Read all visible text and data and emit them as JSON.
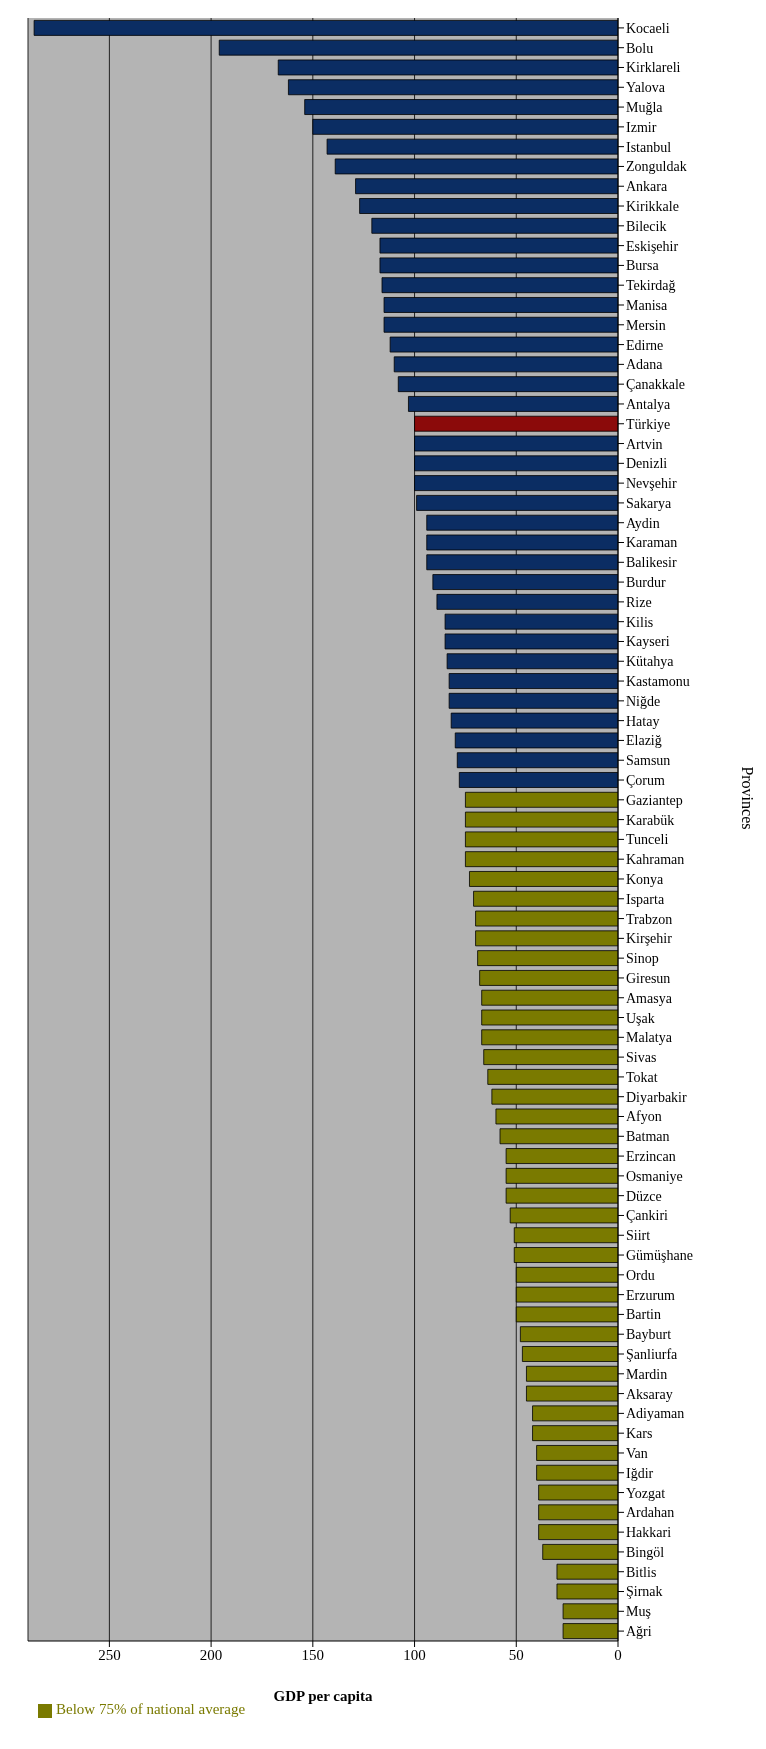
{
  "chart_data": {
    "type": "bar",
    "orientation": "horizontal",
    "stacked": true,
    "xlabel": "GDP per capita",
    "ylabel": "Provinces",
    "categories": [
      "Kocaeli",
      "Bolu",
      "Kirklareli",
      "Yalova",
      "Muğla",
      "Izmir",
      "Istanbul",
      "Zonguldak",
      "Ankara",
      "Kirikkale",
      "Bilecik",
      "Eskişehir",
      "Bursa",
      "Tekirdağ",
      "Manisa",
      "Mersin",
      "Edirne",
      "Adana",
      "Çanakkale",
      "Antalya",
      "Türkiye",
      "Artvin",
      "Denizli",
      "Nevşehir",
      "Sakarya",
      "Aydin",
      "Karaman",
      "Balikesir",
      "Burdur",
      "Rize",
      "Kilis",
      "Kayseri",
      "Kütahya",
      "Kastamonu",
      "Niğde",
      "Hatay",
      "Elaziğ",
      "Samsun",
      "Çorum",
      "Gaziantep",
      "Karabük",
      "Tunceli",
      "Kahraman",
      "Konya",
      "Isparta",
      "Trabzon",
      "Kirşehir",
      "Sinop",
      "Giresun",
      "Amasya",
      "Uşak",
      "Malatya",
      "Sivas",
      "Tokat",
      "Diyarbakir",
      "Afyon",
      "Batman",
      "Erzincan",
      "Osmaniye",
      "Düzce",
      "Çankiri",
      "Siirt",
      "Gümüşhane",
      "Ordu",
      "Erzurum",
      "Bartin",
      "Bayburt",
      "Şanliurfa",
      "Mardin",
      "Aksaray",
      "Adiyaman",
      "Kars",
      "Van",
      "Iğdir",
      "Yozgat",
      "Ardahan",
      "Hakkari",
      "Bingöl",
      "Bitlis",
      "Şirnak",
      "Muş",
      "Ağri"
    ],
    "series": [
      {
        "color": "#0b2d63",
        "colors": [
          "#0b2d63",
          "#0b2d63",
          "#0b2d63",
          "#0b2d63",
          "#0b2d63",
          "#0b2d63",
          "#0b2d63",
          "#0b2d63",
          "#0b2d63",
          "#0b2d63",
          "#0b2d63",
          "#0b2d63",
          "#0b2d63",
          "#0b2d63",
          "#0b2d63",
          "#0b2d63",
          "#0b2d63",
          "#0b2d63",
          "#0b2d63",
          "#0b2d63",
          "#8b0a0a",
          "#0b2d63",
          "#0b2d63",
          "#0b2d63",
          "#0b2d63",
          "#0b2d63",
          "#0b2d63",
          "#0b2d63",
          "#0b2d63",
          "#0b2d63",
          "#0b2d63",
          "#0b2d63",
          "#0b2d63",
          "#0b2d63",
          "#0b2d63",
          "#0b2d63",
          "#0b2d63",
          "#0b2d63",
          "#0b2d63",
          null,
          null,
          null,
          null,
          null,
          null,
          null,
          null,
          null,
          null,
          null,
          null,
          null,
          null,
          null,
          null,
          null,
          null,
          null,
          null,
          null,
          null,
          null,
          null,
          null,
          null,
          null,
          null,
          null,
          null,
          null,
          null,
          null,
          null,
          null,
          null,
          null,
          null,
          null,
          null,
          null,
          null,
          null
        ],
        "values": [
          287,
          196,
          167,
          162,
          154,
          150,
          143,
          139,
          129,
          127,
          121,
          117,
          117,
          116,
          115,
          115,
          112,
          110,
          108,
          103,
          100,
          100,
          100,
          100,
          99,
          94,
          94,
          94,
          91,
          89,
          85,
          85,
          84,
          83,
          83,
          82,
          80,
          79,
          78,
          null,
          null,
          null,
          null,
          null,
          null,
          null,
          null,
          null,
          null,
          null,
          null,
          null,
          null,
          null,
          null,
          null,
          null,
          null,
          null,
          null,
          null,
          null,
          null,
          null,
          null,
          null,
          null,
          null,
          null,
          null,
          null,
          null,
          null,
          null,
          null,
          null,
          null,
          null,
          null,
          null,
          null,
          null
        ]
      },
      {
        "name": "Below 75% of national average",
        "color": "#7a7a00",
        "values": [
          null,
          null,
          null,
          null,
          null,
          null,
          null,
          null,
          null,
          null,
          null,
          null,
          null,
          null,
          null,
          null,
          null,
          null,
          null,
          null,
          null,
          null,
          null,
          null,
          null,
          null,
          null,
          null,
          null,
          null,
          null,
          null,
          null,
          null,
          null,
          null,
          null,
          null,
          null,
          75,
          75,
          75,
          75,
          73,
          71,
          70,
          70,
          69,
          68,
          67,
          67,
          67,
          66,
          64,
          62,
          60,
          58,
          55,
          55,
          55,
          53,
          51,
          51,
          50,
          50,
          50,
          48,
          47,
          45,
          45,
          42,
          42,
          40,
          40,
          39,
          39,
          39,
          37,
          30,
          30,
          27,
          27
        ]
      }
    ],
    "xlim": [
      290,
      0
    ],
    "xticks": [
      0,
      50,
      100,
      150,
      200,
      250
    ],
    "grid": "x",
    "legend": "bottom left"
  }
}
